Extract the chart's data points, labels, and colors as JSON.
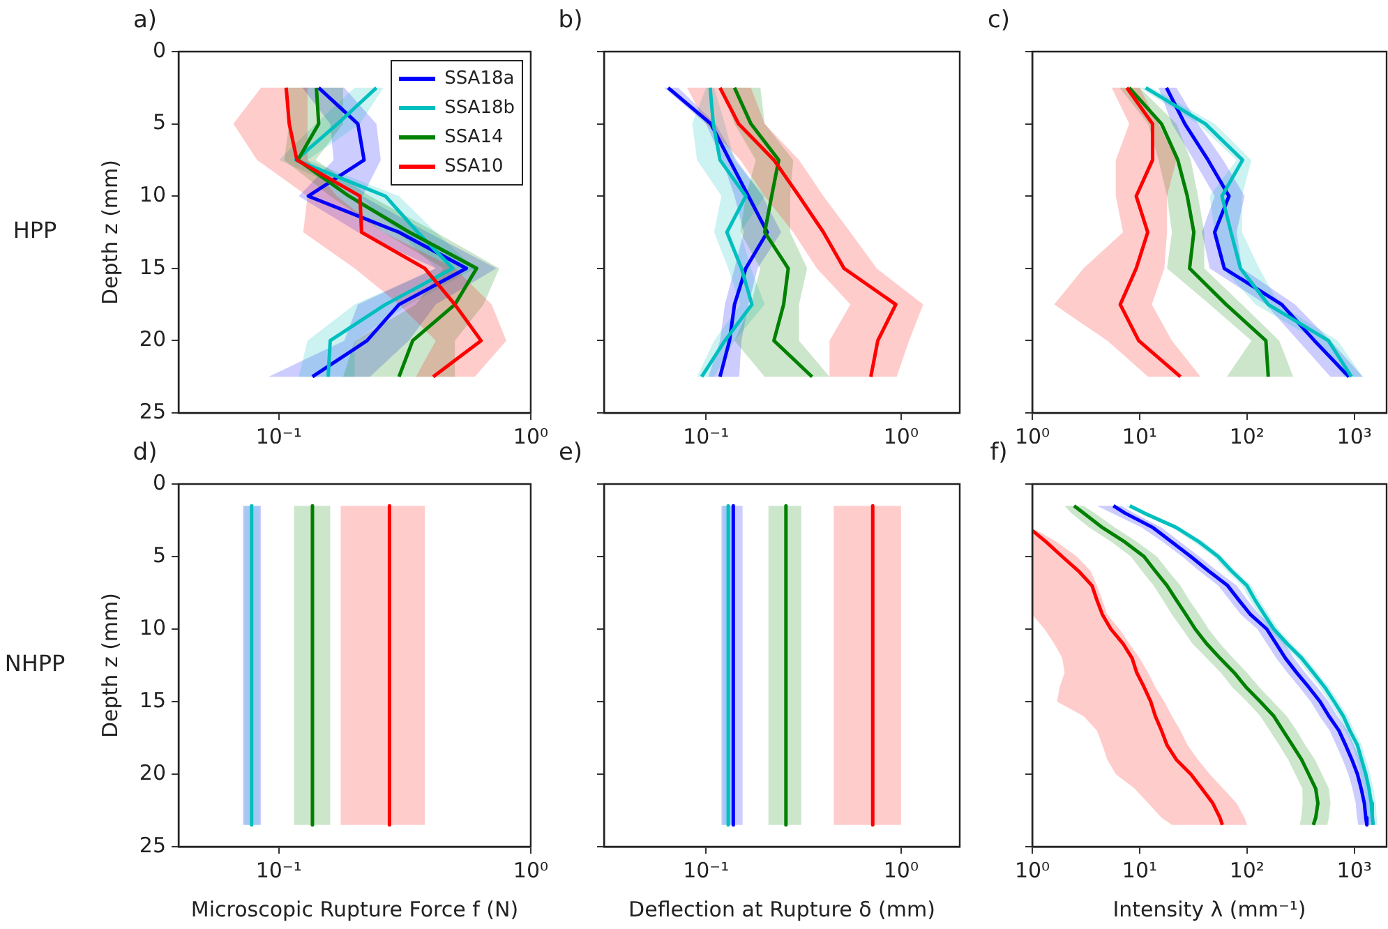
{
  "chart_data": [
    {
      "type": "line",
      "orientation": "horizontal",
      "log": "x",
      "title": "a)",
      "ylabel": "Depth z (mm)",
      "annotations": [
        "HPP"
      ],
      "legend": "top right",
      "grid": false,
      "marker": "none",
      "line_style": "solid",
      "xlim": [
        0.04,
        1
      ],
      "xticks": [
        {
          "value": 0.1,
          "label": "10⁻¹"
        },
        {
          "value": 1,
          "label": "10⁰"
        }
      ],
      "ylim": [
        25,
        0
      ],
      "yticks": [
        0,
        5,
        10,
        15,
        20,
        25
      ],
      "x": [
        2.5,
        5,
        7.5,
        10,
        12.5,
        15,
        17.5,
        20,
        22.5
      ],
      "series": [
        {
          "name": "SSA18a",
          "color": "#0000ff",
          "values": [
            0.144,
            0.206,
            0.218,
            0.131,
            0.3,
            0.555,
            0.3,
            0.224,
            0.136
          ],
          "lower": [
            0.124,
            0.16,
            0.165,
            0.12,
            0.206,
            0.42,
            0.206,
            0.182,
            0.091
          ],
          "upper": [
            0.182,
            0.244,
            0.254,
            0.215,
            0.39,
            0.73,
            0.42,
            0.328,
            0.23
          ]
        },
        {
          "name": "SSA18b",
          "color": "#00bfbf",
          "values": [
            0.244,
            0.171,
            0.117,
            0.265,
            0.356,
            0.49,
            0.265,
            0.16,
            0.157
          ],
          "lower": [
            0.2,
            0.14,
            0.1,
            0.21,
            0.3,
            0.42,
            0.2,
            0.13,
            0.12
          ],
          "upper": [
            0.26,
            0.21,
            0.13,
            0.3,
            0.42,
            0.6,
            0.33,
            0.2,
            0.2
          ]
        },
        {
          "name": "SSA14",
          "color": "#008000",
          "values": [
            0.141,
            0.144,
            0.119,
            0.19,
            0.33,
            0.61,
            0.5,
            0.34,
            0.3
          ],
          "lower": [
            0.105,
            0.11,
            0.105,
            0.16,
            0.26,
            0.45,
            0.35,
            0.2,
            0.18
          ],
          "upper": [
            0.18,
            0.18,
            0.14,
            0.23,
            0.42,
            0.75,
            0.65,
            0.5,
            0.5
          ]
        },
        {
          "name": "SSA10",
          "color": "#ff0000",
          "values": [
            0.107,
            0.11,
            0.118,
            0.21,
            0.213,
            0.38,
            0.5,
            0.635,
            0.41
          ],
          "lower": [
            0.085,
            0.066,
            0.082,
            0.13,
            0.125,
            0.2,
            0.3,
            0.42,
            0.35
          ],
          "upper": [
            0.13,
            0.13,
            0.13,
            0.17,
            0.26,
            0.5,
            0.7,
            0.8,
            0.6
          ]
        }
      ]
    },
    {
      "type": "line",
      "orientation": "horizontal",
      "log": "x",
      "title": "b)",
      "tick_labels": "x",
      "grid": false,
      "marker": "none",
      "line_style": "solid",
      "xlim": [
        0.03,
        2
      ],
      "xticks": [
        {
          "value": 0.1,
          "label": "10⁻¹"
        },
        {
          "value": 1,
          "label": "10⁰"
        }
      ],
      "ylim": [
        25,
        0
      ],
      "yticks": [
        0,
        5,
        10,
        15,
        20,
        25
      ],
      "x": [
        2.5,
        5,
        7.5,
        10,
        12.5,
        15,
        17.5,
        20,
        22.5
      ],
      "series": [
        {
          "color": "#0000ff",
          "values": [
            0.064,
            0.106,
            0.132,
            0.165,
            0.206,
            0.16,
            0.14,
            0.132,
            0.118
          ],
          "lower": [
            0.061,
            0.1,
            0.121,
            0.14,
            0.156,
            0.14,
            0.125,
            0.118,
            0.103
          ],
          "upper": [
            0.072,
            0.112,
            0.143,
            0.195,
            0.243,
            0.184,
            0.165,
            0.152,
            0.148
          ]
        },
        {
          "color": "#00bfbf",
          "values": [
            0.105,
            0.109,
            0.118,
            0.16,
            0.128,
            0.152,
            0.172,
            0.125,
            0.095
          ],
          "lower": [
            0.1,
            0.085,
            0.09,
            0.12,
            0.11,
            0.13,
            0.15,
            0.11,
            0.09
          ],
          "upper": [
            0.11,
            0.125,
            0.14,
            0.2,
            0.15,
            0.17,
            0.2,
            0.14,
            0.11
          ]
        },
        {
          "color": "#008000",
          "values": [
            0.14,
            0.17,
            0.236,
            0.217,
            0.2,
            0.264,
            0.25,
            0.223,
            0.35
          ],
          "lower": [
            0.12,
            0.14,
            0.18,
            0.16,
            0.15,
            0.19,
            0.17,
            0.14,
            0.2
          ],
          "upper": [
            0.19,
            0.2,
            0.28,
            0.27,
            0.27,
            0.33,
            0.3,
            0.3,
            0.43
          ]
        },
        {
          "color": "#ff0000",
          "values": [
            0.118,
            0.147,
            0.223,
            0.3,
            0.4,
            0.51,
            0.94,
            0.76,
            0.7
          ],
          "lower": [
            0.08,
            0.1,
            0.15,
            0.2,
            0.28,
            0.37,
            0.55,
            0.43,
            0.43
          ],
          "upper": [
            0.17,
            0.2,
            0.3,
            0.4,
            0.55,
            0.75,
            1.3,
            1.1,
            0.95
          ]
        }
      ]
    },
    {
      "type": "line",
      "orientation": "horizontal",
      "log": "x",
      "title": "c)",
      "tick_labels": "x",
      "grid": false,
      "marker": "none",
      "line_style": "solid",
      "xlim": [
        1,
        2000
      ],
      "xticks": [
        {
          "value": 1,
          "label": "10⁰"
        },
        {
          "value": 10,
          "label": "10¹"
        },
        {
          "value": 100,
          "label": "10²"
        },
        {
          "value": 1000,
          "label": "10³"
        }
      ],
      "ylim": [
        25,
        0
      ],
      "yticks": [
        0,
        5,
        10,
        15,
        20,
        25
      ],
      "x": [
        2.5,
        5,
        7.5,
        10,
        12.5,
        15,
        17.5,
        20,
        22.5
      ],
      "series": [
        {
          "color": "#0000ff",
          "values": [
            17.8,
            26.4,
            43.4,
            68,
            50,
            61.5,
            211,
            425,
            891
          ],
          "lower": [
            15,
            20,
            32,
            50,
            38,
            45,
            150,
            300,
            600
          ],
          "upper": [
            22,
            35,
            60,
            95,
            80,
            90,
            280,
            600,
            1200
          ]
        },
        {
          "color": "#00bfbf",
          "values": [
            11.4,
            41,
            91,
            58.5,
            71,
            87,
            158,
            574,
            940
          ],
          "lower": [
            10,
            35,
            80,
            45,
            50,
            60,
            120,
            450,
            800
          ],
          "upper": [
            13,
            50,
            110,
            90,
            90,
            130,
            200,
            700,
            1200
          ]
        },
        {
          "color": "#008000",
          "values": [
            8,
            16,
            22.7,
            27.8,
            32,
            29.2,
            64,
            150,
            158
          ],
          "lower": [
            6.5,
            12,
            15,
            18,
            20,
            18,
            45,
            110,
            65
          ],
          "upper": [
            10,
            22,
            30,
            35,
            40,
            40,
            90,
            200,
            270
          ]
        },
        {
          "color": "#ff0000",
          "values": [
            7.6,
            13.2,
            13.2,
            9.3,
            11.9,
            9.3,
            6.6,
            9.8,
            24
          ],
          "lower": [
            5.5,
            8,
            6,
            6,
            7,
            3,
            1.6,
            5,
            12
          ],
          "upper": [
            10,
            15,
            22,
            18,
            18,
            17,
            13,
            20,
            37
          ]
        }
      ]
    },
    {
      "type": "line",
      "orientation": "horizontal",
      "log": "x",
      "title": "d)",
      "ylabel": "Depth z (mm)",
      "xlabel": "Microscopic Rupture Force f (N)",
      "annotations": [
        "NHPP"
      ],
      "grid": false,
      "marker": "none",
      "line_style": "solid",
      "xlim": [
        0.04,
        1
      ],
      "xticks": [
        {
          "value": 0.1,
          "label": "10⁻¹"
        },
        {
          "value": 1,
          "label": "10⁰"
        }
      ],
      "ylim": [
        25,
        0
      ],
      "yticks": [
        0,
        5,
        10,
        15,
        20,
        25
      ],
      "x": [
        1.5,
        23.5
      ],
      "series": [
        {
          "color": "#0000ff",
          "values": [
            null,
            null
          ],
          "lower": [
            0.072,
            0.072
          ],
          "upper": [
            0.085,
            0.085
          ]
        },
        {
          "color": "#00bfbf",
          "values": [
            0.078,
            0.078
          ],
          "lower": [
            0.073,
            0.073
          ],
          "upper": [
            0.084,
            0.084
          ]
        },
        {
          "color": "#008000",
          "values": [
            0.136,
            0.136
          ],
          "lower": [
            0.115,
            0.115
          ],
          "upper": [
            0.16,
            0.16
          ]
        },
        {
          "color": "#ff0000",
          "values": [
            0.275,
            0.275
          ],
          "lower": [
            0.176,
            0.176
          ],
          "upper": [
            0.38,
            0.38
          ]
        }
      ]
    },
    {
      "type": "line",
      "orientation": "horizontal",
      "log": "x",
      "title": "e)",
      "xlabel": "Deflection at Rupture δ (mm)",
      "tick_labels": "x",
      "grid": false,
      "marker": "none",
      "line_style": "solid",
      "xlim": [
        0.03,
        2
      ],
      "xticks": [
        {
          "value": 0.1,
          "label": "10⁻¹"
        },
        {
          "value": 1,
          "label": "10⁰"
        }
      ],
      "ylim": [
        25,
        0
      ],
      "yticks": [
        0,
        5,
        10,
        15,
        20,
        25
      ],
      "x": [
        1.5,
        23.5
      ],
      "series": [
        {
          "color": "#0000ff",
          "values": [
            0.138,
            0.138
          ],
          "lower": [
            0.12,
            0.12
          ],
          "upper": [
            0.154,
            0.154
          ]
        },
        {
          "color": "#00bfbf",
          "values": [
            0.13,
            0.13
          ],
          "lower": [
            0.122,
            0.122
          ],
          "upper": [
            0.14,
            0.14
          ]
        },
        {
          "color": "#008000",
          "values": [
            0.257,
            0.257
          ],
          "lower": [
            0.209,
            0.209
          ],
          "upper": [
            0.308,
            0.308
          ]
        },
        {
          "color": "#ff0000",
          "values": [
            0.716,
            0.716
          ],
          "lower": [
            0.452,
            0.452
          ],
          "upper": [
            1,
            1
          ]
        }
      ]
    },
    {
      "type": "line",
      "orientation": "horizontal",
      "log": "x",
      "title": "f)",
      "xlabel": "Intensity λ (mm⁻¹)",
      "tick_labels": "x",
      "grid": false,
      "marker": "none",
      "line_style": "solid",
      "xlim": [
        1,
        2000
      ],
      "xticks": [
        {
          "value": 1,
          "label": "10⁰"
        },
        {
          "value": 10,
          "label": "10¹"
        },
        {
          "value": 100,
          "label": "10²"
        },
        {
          "value": 1000,
          "label": "10³"
        }
      ],
      "ylim": [
        25,
        0
      ],
      "yticks": [
        0,
        5,
        10,
        15,
        20,
        25
      ],
      "series": [
        {
          "color": "#0000ff",
          "x": [
            1.5,
            2,
            3,
            4,
            5,
            6,
            7,
            8,
            9,
            10,
            11,
            12,
            13,
            14,
            15,
            16,
            17,
            18,
            19,
            20,
            21,
            22,
            23,
            23.5
          ],
          "values": [
            5.7,
            7.3,
            13.3,
            20,
            30,
            44,
            66,
            84,
            108,
            153,
            187,
            228,
            290,
            376,
            480,
            580,
            720,
            830,
            950,
            1070,
            1160,
            1240,
            1280,
            1310
          ],
          "lower": [
            4,
            5.5,
            10.5,
            16.5,
            25,
            36,
            54,
            69,
            88,
            125,
            153,
            187,
            238,
            308,
            393,
            475,
            590,
            680,
            780,
            880,
            960,
            1030,
            1060,
            1090
          ],
          "upper": [
            6.8,
            8.8,
            16,
            24,
            36,
            53,
            80,
            101,
            130,
            184,
            225,
            274,
            348,
            451,
            576,
            696,
            864,
            996,
            1140,
            1280,
            1390,
            1490,
            1540,
            1570
          ]
        },
        {
          "color": "#00bfbf",
          "x": [
            1.5,
            2,
            3,
            4,
            5,
            6,
            7,
            8,
            9,
            10,
            11,
            12,
            13,
            14,
            15,
            16,
            17,
            18,
            19,
            20,
            21,
            22,
            23,
            23.5
          ],
          "values": [
            8.1,
            11,
            22,
            36,
            54,
            72,
            100,
            119,
            145,
            178,
            236,
            323,
            415,
            530,
            650,
            790,
            910,
            1070,
            1170,
            1280,
            1370,
            1440,
            1470,
            1500
          ],
          "lower": [
            7.3,
            9.9,
            20,
            32,
            49,
            65,
            90,
            107,
            130,
            160,
            212,
            290,
            374,
            477,
            585,
            711,
            819,
            963,
            1053,
            1152,
            1233,
            1296,
            1323,
            1350
          ],
          "upper": [
            8.9,
            12.1,
            24,
            40,
            59,
            79,
            110,
            131,
            160,
            196,
            260,
            355,
            457,
            583,
            715,
            869,
            1000,
            1177,
            1287,
            1408,
            1507,
            1584,
            1617,
            1650
          ]
        },
        {
          "color": "#008000",
          "x": [
            1.5,
            2,
            3,
            4,
            5,
            6,
            7,
            8,
            9,
            10,
            11,
            12,
            13,
            14,
            15,
            16,
            17,
            18,
            19,
            20,
            21,
            22,
            23,
            23.5
          ],
          "values": [
            2.45,
            3,
            4.5,
            7.3,
            11,
            14,
            18,
            22,
            27,
            33,
            42,
            56,
            76,
            98,
            133,
            178,
            217,
            265,
            323,
            376,
            437,
            458,
            437,
            415
          ],
          "lower": [
            2,
            2.3,
            3.4,
            5.5,
            8.3,
            10.5,
            13.5,
            16.5,
            20,
            25,
            31,
            42,
            57,
            73,
            100,
            133,
            163,
            200,
            242,
            282,
            328,
            330,
            320,
            310
          ],
          "upper": [
            3,
            3.8,
            5.9,
            9.5,
            14.5,
            18.5,
            24,
            29,
            36,
            44,
            56,
            74,
            100,
            130,
            175,
            235,
            290,
            350,
            430,
            500,
            580,
            600,
            580,
            560
          ]
        },
        {
          "color": "#ff0000",
          "x": [
            3.2,
            4,
            5,
            6,
            7,
            8,
            9,
            10,
            11,
            12,
            13,
            14,
            15,
            16,
            17,
            18,
            19,
            20,
            21,
            22,
            23,
            23.5
          ],
          "values": [
            1,
            1.35,
            1.9,
            2.7,
            3.6,
            4,
            4.5,
            5.4,
            7,
            8.5,
            9.4,
            11,
            12.7,
            14,
            16,
            18,
            22,
            30,
            38,
            48,
            56,
            59
          ],
          "lower": [
            1,
            1,
            1,
            1,
            1,
            1,
            1,
            1.3,
            1.6,
            1.9,
            2,
            1.8,
            1.7,
            3,
            4,
            4.5,
            5,
            6,
            9,
            12,
            16,
            20
          ],
          "upper": [
            1.1,
            1.7,
            2.6,
            3.5,
            4,
            4.5,
            5,
            6.5,
            8,
            10,
            12,
            14,
            17,
            20,
            24,
            28,
            35,
            45,
            60,
            80,
            95,
            100
          ]
        }
      ]
    }
  ]
}
